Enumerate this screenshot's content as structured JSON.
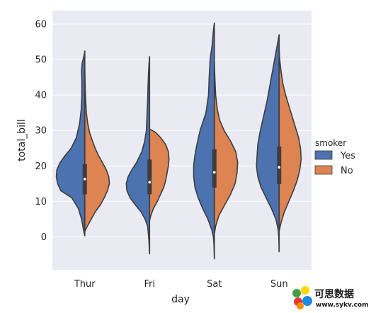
{
  "chart_data": {
    "type": "violin",
    "split": true,
    "categories": [
      "Thur",
      "Fri",
      "Sat",
      "Sun"
    ],
    "xlabel": "day",
    "ylabel": "total_bill",
    "yticks": [
      0,
      10,
      20,
      30,
      40,
      50,
      60
    ],
    "ylim": [
      -9.3,
      63.8
    ],
    "grid": true,
    "legend": {
      "title": "smoker",
      "placement": "right",
      "entries": [
        {
          "name": "Yes",
          "color": "#4c72b0"
        },
        {
          "name": "No",
          "color": "#dd8452"
        }
      ]
    },
    "series": [
      {
        "name": "Yes",
        "color": "#4c72b0",
        "violins": [
          {
            "category": "Thur",
            "min": 0.3,
            "max": 52.4,
            "y": [
              0.3,
              2,
              5,
              8,
              11,
              13,
              15,
              17,
              19,
              21,
              23,
              25,
              28,
              32,
              36,
              40,
              44,
              47,
              49,
              50.5,
              51.5,
              52.4
            ],
            "w": [
              0,
              0.02,
              0.05,
              0.1,
              0.2,
              0.37,
              0.42,
              0.44,
              0.43,
              0.38,
              0.3,
              0.21,
              0.13,
              0.08,
              0.055,
              0.045,
              0.045,
              0.05,
              0.04,
              0.02,
              0.008,
              0
            ]
          },
          {
            "category": "Fri",
            "min": -4.8,
            "max": 50.8,
            "y": [
              -4.8,
              -3,
              -1,
              1,
              3,
              5,
              7,
              9,
              11,
              13,
              15,
              17,
              19,
              21,
              24,
              27,
              30,
              34,
              38,
              42,
              46,
              49,
              50.8
            ],
            "w": [
              0,
              0.005,
              0.01,
              0.02,
              0.03,
              0.07,
              0.13,
              0.22,
              0.3,
              0.35,
              0.36,
              0.33,
              0.27,
              0.2,
              0.12,
              0.075,
              0.05,
              0.04,
              0.03,
              0.025,
              0.017,
              0.008,
              0
            ]
          },
          {
            "category": "Sat",
            "min": -6.2,
            "max": 60.3,
            "y": [
              -6.2,
              -4,
              -2,
              0,
              2,
              5,
              8,
              11,
              14,
              17,
              20,
              23,
              26,
              30,
              35,
              40,
              45,
              50,
              54,
              57,
              59,
              60.3
            ],
            "w": [
              0,
              0.003,
              0.007,
              0.015,
              0.04,
              0.1,
              0.18,
              0.25,
              0.3,
              0.32,
              0.32,
              0.3,
              0.27,
              0.22,
              0.13,
              0.09,
              0.08,
              0.065,
              0.035,
              0.02,
              0.01,
              0
            ]
          },
          {
            "category": "Sun",
            "min": -4.2,
            "max": 57.0,
            "y": [
              -4.2,
              -2,
              0,
              2,
              5,
              8,
              11,
              14,
              17,
              20,
              23,
              26,
              30,
              34,
              38,
              42,
              46,
              50,
              53,
              55.5,
              57
            ],
            "w": [
              0,
              0.003,
              0.006,
              0.015,
              0.05,
              0.12,
              0.2,
              0.28,
              0.33,
              0.35,
              0.34,
              0.33,
              0.29,
              0.24,
              0.19,
              0.15,
              0.11,
              0.07,
              0.04,
              0.015,
              0
            ]
          }
        ]
      },
      {
        "name": "No",
        "color": "#dd8452",
        "violins": [
          {
            "category": "Thur",
            "min": 1.5,
            "max": 47.5,
            "y": [
              1.5,
              3,
              5,
              7,
              9,
              11,
              13,
              15,
              17,
              19,
              21,
              23,
              25,
              27,
              29,
              32,
              35,
              38,
              41,
              44,
              47.5
            ],
            "w": [
              0,
              0.04,
              0.1,
              0.16,
              0.24,
              0.3,
              0.35,
              0.38,
              0.37,
              0.33,
              0.27,
              0.21,
              0.16,
              0.12,
              0.08,
              0.045,
              0.025,
              0.015,
              0.008,
              0.004,
              0
            ]
          },
          {
            "category": "Fri",
            "min": 4.6,
            "max": 30.4,
            "y": [
              4.6,
              6,
              8,
              10,
              12,
              14,
              16,
              18,
              20,
              22,
              24,
              26,
              28,
              29.5,
              30.4
            ],
            "w": [
              0,
              0.02,
              0.06,
              0.12,
              0.17,
              0.22,
              0.25,
              0.27,
              0.29,
              0.3,
              0.29,
              0.25,
              0.17,
              0.09,
              0
            ]
          },
          {
            "category": "Sat",
            "min": 0.8,
            "max": 49.5,
            "y": [
              0.8,
              3,
              6,
              9,
              12,
              15,
              18,
              21,
              24,
              27,
              30,
              33,
              36,
              40,
              44,
              47,
              49.5
            ],
            "w": [
              0,
              0.02,
              0.07,
              0.16,
              0.25,
              0.32,
              0.35,
              0.36,
              0.33,
              0.25,
              0.15,
              0.08,
              0.045,
              0.02,
              0.01,
              0.004,
              0
            ]
          },
          {
            "category": "Sun",
            "min": 1.6,
            "max": 53.0,
            "y": [
              1.6,
              4,
              7,
              10,
              13,
              16,
              19,
              22,
              25,
              28,
              31,
              34,
              37,
              40,
              43,
              46,
              49,
              51,
              53
            ],
            "w": [
              0,
              0.03,
              0.08,
              0.15,
              0.22,
              0.28,
              0.32,
              0.34,
              0.33,
              0.3,
              0.25,
              0.2,
              0.15,
              0.1,
              0.06,
              0.035,
              0.015,
              0.005,
              0
            ]
          }
        ]
      }
    ],
    "box": [
      {
        "category": "Thur",
        "q1": 12.0,
        "median": 16.3,
        "q3": 20.5
      },
      {
        "category": "Fri",
        "q1": 12.0,
        "median": 15.4,
        "q3": 21.8
      },
      {
        "category": "Sat",
        "q1": 13.9,
        "median": 18.2,
        "q3": 24.7
      },
      {
        "category": "Sun",
        "q1": 14.9,
        "median": 19.6,
        "q3": 25.5
      }
    ]
  },
  "watermark": {
    "text": "可思数据",
    "url": "www.sykv.com",
    "colors": [
      "#e53935",
      "#ffd600",
      "#43a047",
      "#1e88e5",
      "#fb8c00",
      "#8e24aa"
    ]
  }
}
